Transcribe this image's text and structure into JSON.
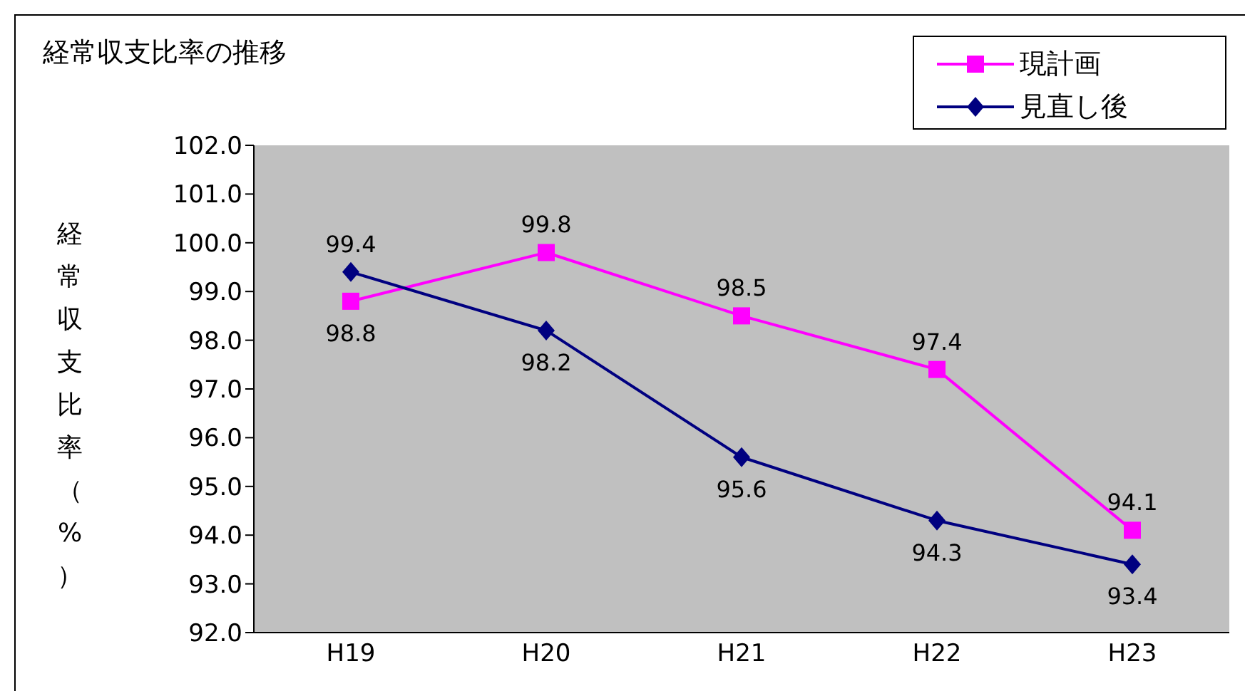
{
  "chart_data": {
    "type": "line",
    "title": "経常収支比率の推移",
    "ylabel": "経常収支比率（%）",
    "categories": [
      "H19",
      "H20",
      "H21",
      "H22",
      "H23"
    ],
    "series": [
      {
        "name": "現計画",
        "color": "#ff00ff",
        "marker": "square",
        "values": [
          98.8,
          99.8,
          98.5,
          97.4,
          94.1
        ]
      },
      {
        "name": "見直し後",
        "color": "#000080",
        "marker": "diamond",
        "values": [
          99.4,
          98.2,
          95.6,
          94.3,
          93.4
        ]
      }
    ],
    "ylim": [
      92,
      102
    ],
    "yticks": [
      {
        "value": 92,
        "label": "92.0"
      },
      {
        "value": 93,
        "label": "93.0"
      },
      {
        "value": 94,
        "label": "94.0"
      },
      {
        "value": 95,
        "label": "95.0"
      },
      {
        "value": 96,
        "label": "96.0"
      },
      {
        "value": 97,
        "label": "97.0"
      },
      {
        "value": 98,
        "label": "98.0"
      },
      {
        "value": 99,
        "label": "99.0"
      },
      {
        "value": 100,
        "label": "100.0"
      },
      {
        "value": 101,
        "label": "101.0"
      },
      {
        "value": 102,
        "label": "102.0"
      }
    ],
    "data_labels": true,
    "legend": "top right",
    "line_style": "solid"
  }
}
